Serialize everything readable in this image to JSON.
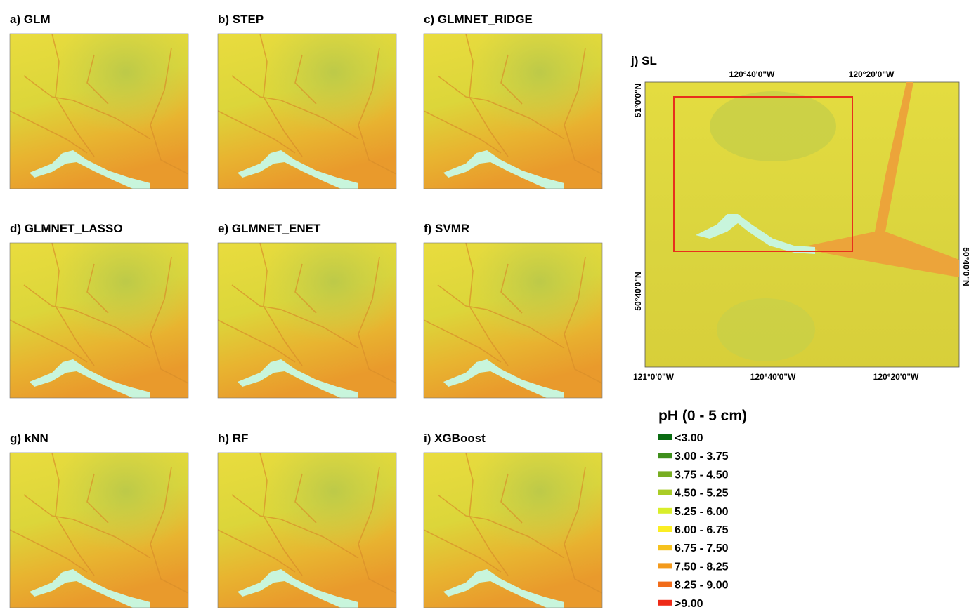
{
  "panels": [
    {
      "label": "a) GLM"
    },
    {
      "label": "b) STEP"
    },
    {
      "label": "c) GLMNET_RIDGE"
    },
    {
      "label": "d) GLMNET_LASSO"
    },
    {
      "label": "e) GLMNET_ENET"
    },
    {
      "label": "f) SVMR"
    },
    {
      "label": "g) kNN"
    },
    {
      "label": "h) RF"
    },
    {
      "label": "i) XGBoost"
    }
  ],
  "overview": {
    "title": "j) SL",
    "top_labels": [
      "120°40'0\"W",
      "120°20'0\"W"
    ],
    "bottom_labels": [
      "121°0'0\"W",
      "120°40'0\"W",
      "120°20'0\"W"
    ],
    "left_labels": [
      "51°0'0\"N",
      "50°40'0\"N"
    ],
    "right_labels": [
      "50°40'0\"N"
    ]
  },
  "legend": {
    "title": "pH (0 - 5 cm)",
    "items": [
      {
        "label": "<3.00",
        "color": "#0a6b12"
      },
      {
        "label": "3.00 - 3.75",
        "color": "#3f8f1c"
      },
      {
        "label": "3.75 - 4.50",
        "color": "#78ad22"
      },
      {
        "label": "4.50 - 5.25",
        "color": "#a9cc26"
      },
      {
        "label": "5.25 - 6.00",
        "color": "#d9ee2a"
      },
      {
        "label": "6.00 - 6.75",
        "color": "#fbee24"
      },
      {
        "label": "6.75 - 7.50",
        "color": "#f6c21e"
      },
      {
        "label": "7.50 - 8.25",
        "color": "#f39a1c"
      },
      {
        "label": "8.25 - 9.00",
        "color": "#f16c1a"
      },
      {
        "label": ">9.00",
        "color": "#ee2a17"
      }
    ]
  }
}
